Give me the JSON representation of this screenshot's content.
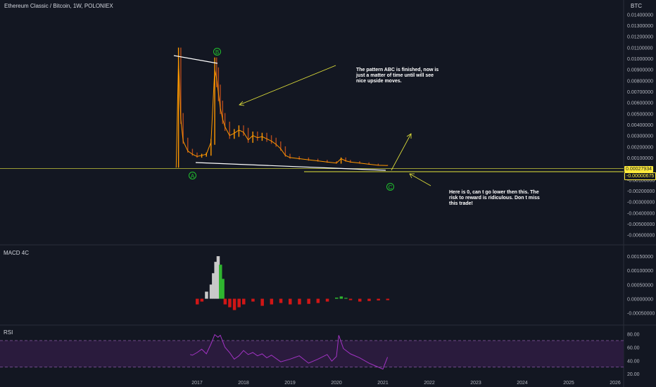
{
  "header": {
    "ticker": "Ethereum Classic / Bitcoin, 1W, POLONIEX",
    "currency": "BTC"
  },
  "panels": {
    "macd_label": "MACD 4C",
    "rsi_label": "RSI"
  },
  "annotations": {
    "note_top": "The pattern ABC is finished, now is just a matter of time until will see nice upside moves.",
    "note_bottom": "Here is 0, can t go lower then this. The risk to reward is ridiculous. Don t miss this trade!",
    "wave_a": "A",
    "wave_b": "B",
    "wave_c": "C"
  },
  "price_tags": {
    "current": "0.00027934",
    "level": "-0.00000675"
  },
  "colors": {
    "background": "#131722",
    "candle_up": "#ff9800",
    "candle_down": "#b24a1c",
    "macd_pos_rising": "#2fb52f",
    "macd_pos_falling": "#c9c9c9",
    "macd_neg": "#d01616",
    "rsi_line": "#a233c4",
    "rsi_band": "#2a1b3d",
    "annotation": "#e6e63a",
    "wave_label": "#21c02e"
  },
  "chart_data": [
    {
      "type": "line",
      "name_hint": "price",
      "price_scale_unit": "BTC",
      "x_ticks": [
        "2017",
        "2018",
        "2019",
        "2020",
        "2021",
        "2022",
        "2023",
        "2024",
        "2025",
        "2026"
      ],
      "y_ticks": [
        "0.01400000",
        "0.01300000",
        "0.01200000",
        "0.01100000",
        "0.01000000",
        "0.00900000",
        "0.00800000",
        "0.00700000",
        "0.00600000",
        "0.00500000",
        "0.00400000",
        "0.00300000",
        "0.00200000",
        "0.00100000",
        "-0.00100000",
        "-0.00200000",
        "-0.00300000",
        "-0.00400000",
        "-0.00500000",
        "-0.00600000"
      ],
      "ylim": [
        -0.0066,
        0.0144
      ],
      "x": [
        2016.55,
        2016.6,
        2016.65,
        2016.7,
        2016.8,
        2016.9,
        2017.0,
        2017.1,
        2017.2,
        2017.3,
        2017.38,
        2017.42,
        2017.46,
        2017.5,
        2017.55,
        2017.6,
        2017.7,
        2017.8,
        2017.9,
        2018.0,
        2018.1,
        2018.2,
        2018.3,
        2018.4,
        2018.5,
        2018.6,
        2018.7,
        2018.8,
        2018.9,
        2019.0,
        2019.2,
        2019.4,
        2019.6,
        2019.8,
        2020.0,
        2020.1,
        2020.2,
        2020.3,
        2020.5,
        2020.7,
        2020.9,
        2021.1
      ],
      "values": [
        0.0001,
        0.0098,
        0.0045,
        0.0025,
        0.0016,
        0.0013,
        0.0011,
        0.0012,
        0.0013,
        0.0024,
        0.009,
        0.0082,
        0.0068,
        0.0055,
        0.0045,
        0.0038,
        0.003,
        0.0032,
        0.0035,
        0.0033,
        0.0026,
        0.003,
        0.0028,
        0.0029,
        0.0027,
        0.0025,
        0.0022,
        0.0018,
        0.0012,
        0.001,
        0.0009,
        0.0008,
        0.0007,
        0.0006,
        0.0005,
        0.0009,
        0.0007,
        0.0006,
        0.0005,
        0.0004,
        0.0003,
        0.00028
      ]
    },
    {
      "type": "bar",
      "name_hint": "macd",
      "y_ticks": [
        "0.00150000",
        "0.00100000",
        "0.00050000",
        "0.00000000",
        "-0.00050000"
      ],
      "ylim": [
        -0.00078,
        0.00175
      ],
      "x": [
        2017.0,
        2017.1,
        2017.2,
        2017.3,
        2017.35,
        2017.4,
        2017.45,
        2017.5,
        2017.55,
        2017.6,
        2017.7,
        2017.8,
        2017.9,
        2018.0,
        2018.2,
        2018.4,
        2018.6,
        2018.8,
        2019.0,
        2019.2,
        2019.4,
        2019.6,
        2019.8,
        2020.0,
        2020.1,
        2020.2,
        2020.3,
        2020.5,
        2020.7,
        2020.9,
        2021.1
      ],
      "values": [
        -0.0002,
        -0.0001,
        0.00025,
        0.0005,
        0.0009,
        0.0013,
        0.0015,
        0.0012,
        0.0007,
        -0.0002,
        -0.0003,
        -0.0004,
        -0.0003,
        -0.0002,
        -0.0001,
        -0.00025,
        -0.0002,
        -0.00015,
        -0.0002,
        -0.0002,
        -0.00018,
        -0.00015,
        -0.0001,
        4e-05,
        8e-05,
        3e-05,
        -5e-05,
        -0.0001,
        -8e-05,
        -6e-05,
        -5e-05
      ]
    },
    {
      "type": "line",
      "name_hint": "rsi",
      "y_ticks": [
        "80.00",
        "60.00",
        "40.00",
        "20.00"
      ],
      "ylim": [
        17,
        87
      ],
      "band": [
        30,
        70
      ],
      "x": [
        2016.85,
        2016.9,
        2017.0,
        2017.1,
        2017.2,
        2017.3,
        2017.38,
        2017.45,
        2017.5,
        2017.6,
        2017.7,
        2017.8,
        2017.9,
        2018.0,
        2018.1,
        2018.2,
        2018.3,
        2018.4,
        2018.5,
        2018.6,
        2018.8,
        2019.0,
        2019.2,
        2019.4,
        2019.6,
        2019.8,
        2019.9,
        2020.0,
        2020.05,
        2020.15,
        2020.3,
        2020.5,
        2020.7,
        2020.9,
        2021.0,
        2021.1
      ],
      "values": [
        49,
        48,
        52,
        57,
        50,
        65,
        79,
        75,
        78,
        60,
        52,
        42,
        47,
        55,
        49,
        52,
        47,
        50,
        44,
        48,
        38,
        42,
        47,
        36,
        42,
        49,
        39,
        46,
        78,
        58,
        50,
        44,
        36,
        30,
        27,
        45
      ]
    }
  ]
}
